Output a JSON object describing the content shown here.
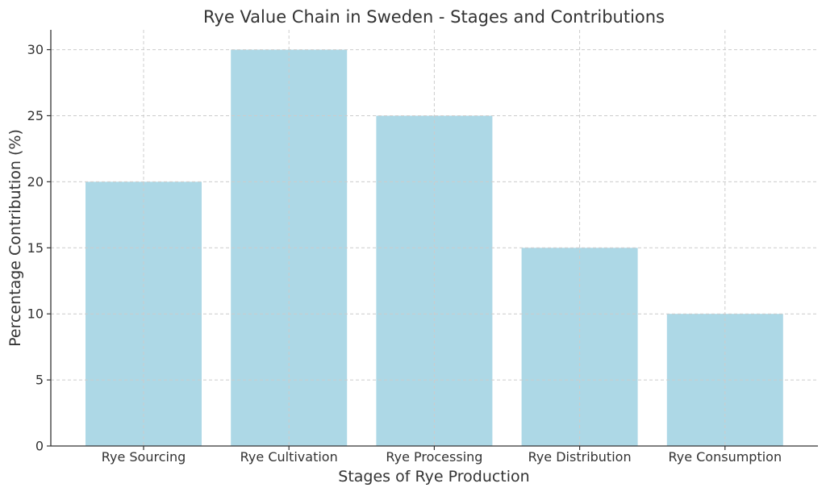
{
  "chart_data": {
    "type": "bar",
    "title": "Rye Value Chain in Sweden - Stages and Contributions",
    "xlabel": "Stages of Rye Production",
    "ylabel": "Percentage Contribution (%)",
    "categories": [
      "Rye Sourcing",
      "Rye Cultivation",
      "Rye Processing",
      "Rye Distribution",
      "Rye Consumption"
    ],
    "values": [
      20,
      30,
      25,
      15,
      10
    ],
    "ylim": [
      0,
      31.5
    ],
    "yticks": [
      0,
      5,
      10,
      15,
      20,
      25,
      30
    ],
    "grid": true,
    "bar_color": "#add8e6"
  }
}
